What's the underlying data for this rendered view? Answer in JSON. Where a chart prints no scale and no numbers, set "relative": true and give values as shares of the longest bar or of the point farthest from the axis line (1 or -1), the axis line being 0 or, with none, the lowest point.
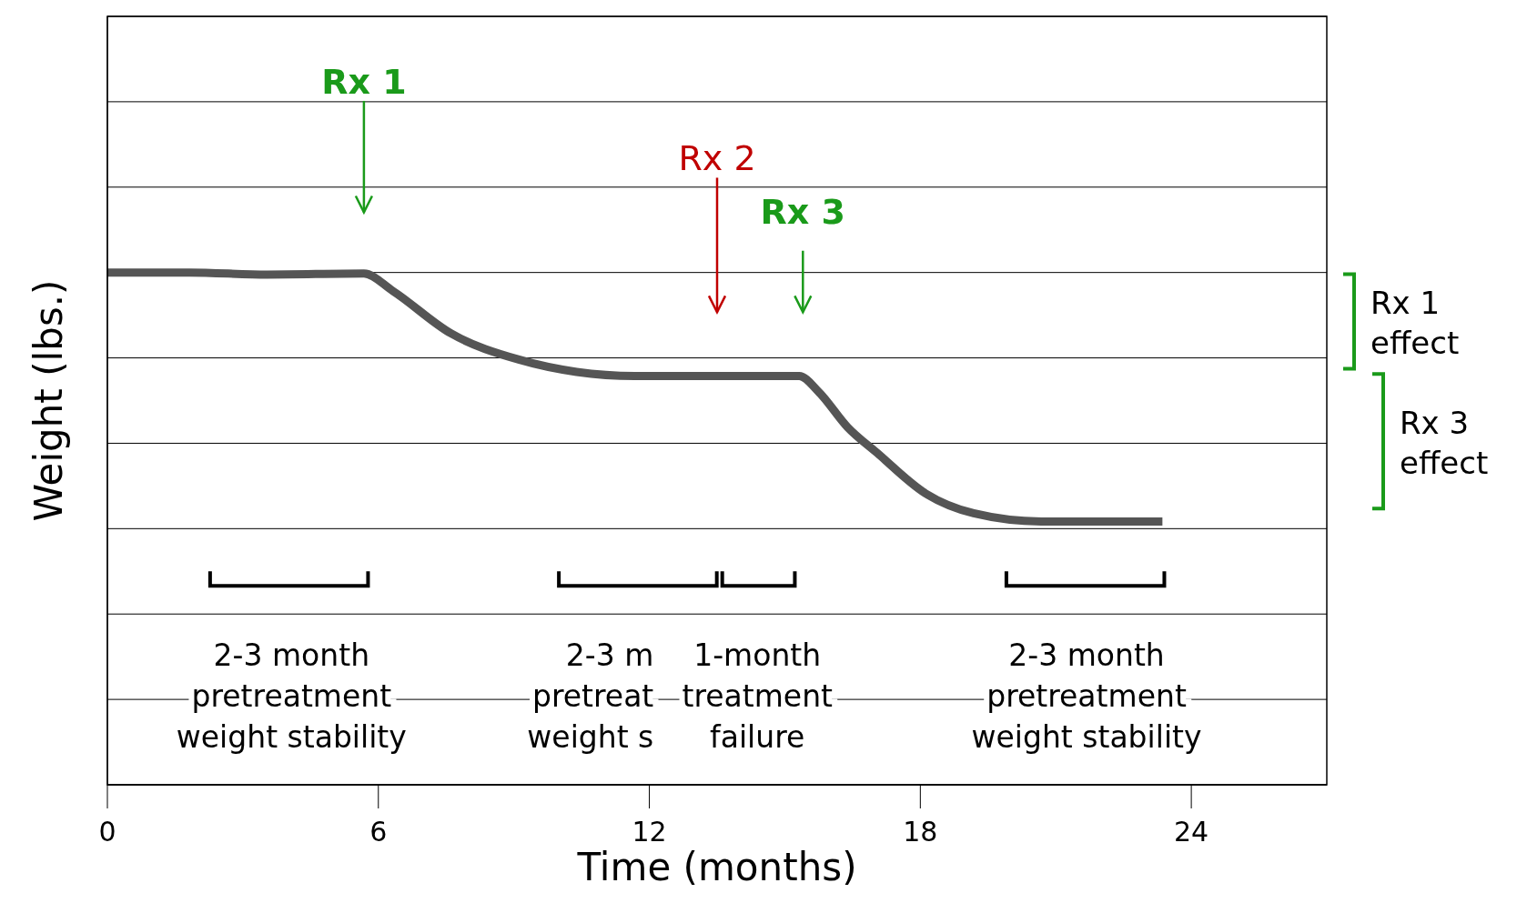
{
  "chart_data": {
    "type": "line",
    "relative": true,
    "xlabel": "Time (months)",
    "ylabel": "Weight (lbs.)",
    "x": [
      0,
      1.82,
      3.54,
      5.68,
      6.32,
      7.61,
      9.11,
      10.39,
      11.68,
      13.39,
      15.32,
      15.75,
      16.39,
      17.04,
      18.11,
      19.18,
      20.68,
      23.36
    ],
    "xlim": [
      0,
      27
    ],
    "xticks": [
      0,
      6,
      12,
      18,
      24
    ],
    "series": [
      {
        "color": "#555555",
        "values": [
          1.0,
          1.0,
          0.996,
          0.998,
          0.964,
          0.881,
          0.83,
          0.806,
          0.798,
          0.798,
          0.798,
          0.767,
          0.698,
          0.648,
          0.569,
          0.53,
          0.514,
          0.514
        ]
      }
    ],
    "grid": "y",
    "marker": "none",
    "line_style": "solid",
    "ref_lines": [
      {
        "axis": "x",
        "value": 5.68,
        "label": "Rx 1",
        "color": "#1a9a1a"
      },
      {
        "axis": "x",
        "value": 13.5,
        "label": "Rx 2",
        "color": "#c00000"
      },
      {
        "axis": "x",
        "value": 15.4,
        "label": "Rx 3",
        "color": "#1a9a1a"
      }
    ],
    "annotations": [
      "2-3 month\npretreatment\nweight stability",
      "2-3 m\npretreat\nweight s",
      "1-month\ntreatment\nfailure",
      "2-3 month\npretreatment\nweight stability",
      "Rx 1\neffect",
      "Rx 3\neffect"
    ]
  }
}
